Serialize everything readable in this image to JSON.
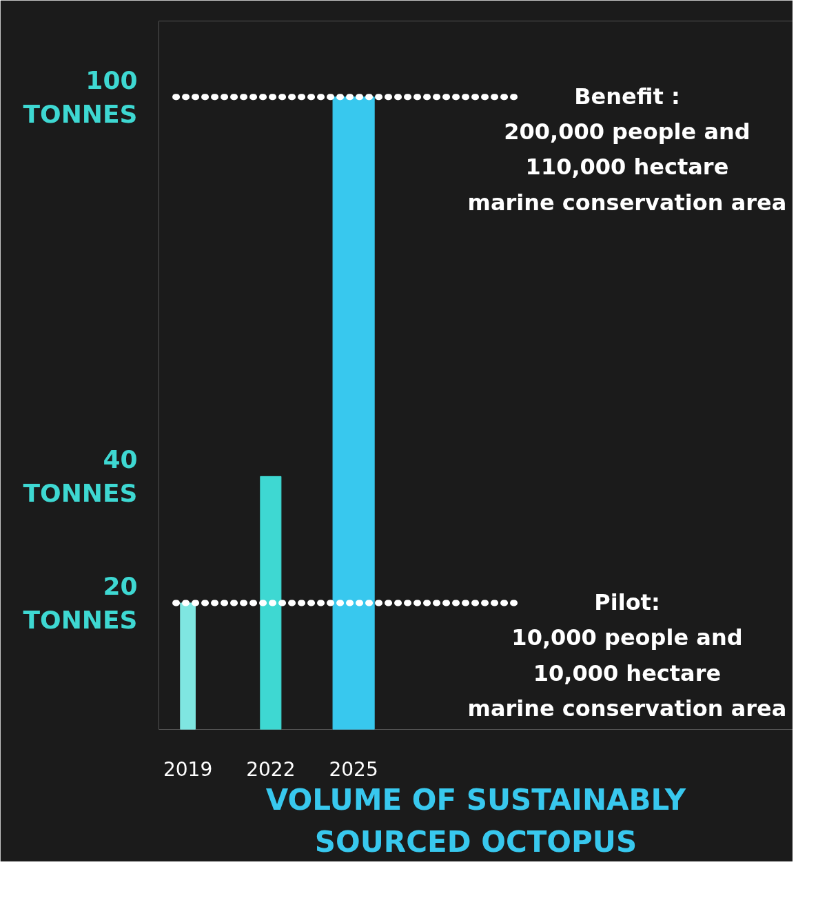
{
  "chart_data": {
    "type": "bar",
    "title": "VOLUME OF SUSTAINABLY SOURCED OCTOPUS",
    "categories": [
      "2019",
      "2022",
      "2025"
    ],
    "values": [
      20,
      40,
      100
    ],
    "colors": [
      "#7fe6e1",
      "#3ed8d2",
      "#38c8ee"
    ],
    "ylim": [
      0,
      112
    ],
    "yticks": [
      {
        "value": 20,
        "label": "20\nTONNES"
      },
      {
        "value": 40,
        "label": "40\nTONNES"
      },
      {
        "value": 100,
        "label": "100\nTONNES"
      }
    ],
    "grid": false,
    "ref_lines": [
      {
        "axis": "y",
        "value": 100,
        "color": "#ffffff",
        "line_style": "dotted"
      },
      {
        "axis": "y",
        "value": 20,
        "color": "#ffffff",
        "line_style": "dotted"
      }
    ],
    "annotations": [
      "Benefit :\n200,000 people and\n110,000 hectare\nmarine conservation area",
      "Pilot:\n10,000 people and\n10,000 hectare\nmarine conservation area"
    ]
  }
}
